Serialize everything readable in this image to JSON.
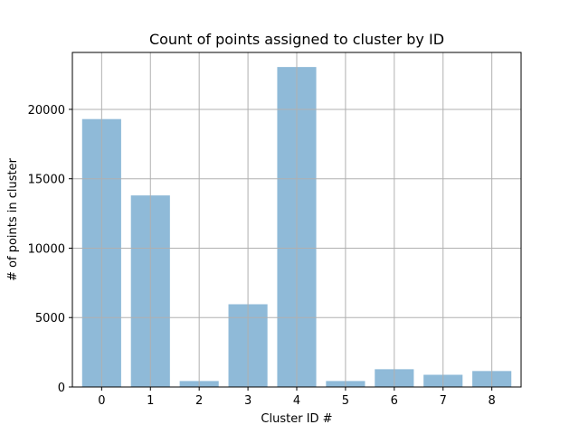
{
  "chart_data": {
    "type": "bar",
    "title": "Count of points assigned to cluster by ID",
    "xlabel": "Cluster ID #",
    "ylabel": "# of points in cluster",
    "categories": [
      "0",
      "1",
      "2",
      "3",
      "4",
      "5",
      "6",
      "7",
      "8"
    ],
    "values": [
      19300,
      13800,
      430,
      5960,
      23050,
      430,
      1280,
      880,
      1150
    ],
    "ylim": [
      0,
      24100
    ],
    "yticks": [
      0,
      5000,
      10000,
      15000,
      20000
    ],
    "grid": true,
    "legend": "none",
    "bar_color": "#8fbad8",
    "grid_color": "#b0b0b0"
  }
}
